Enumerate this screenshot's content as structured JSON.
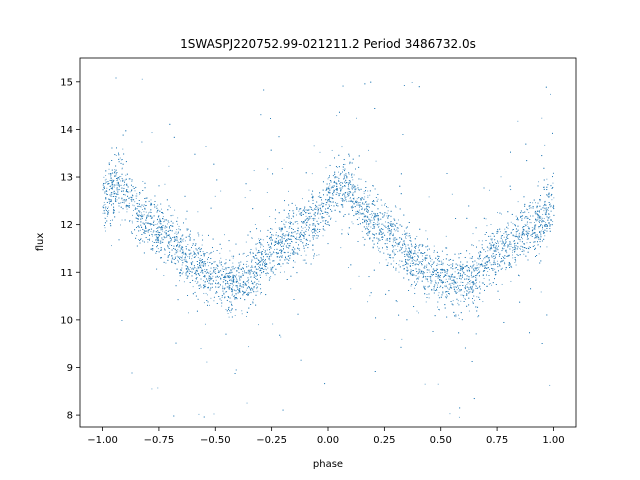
{
  "chart_data": {
    "type": "scatter",
    "title": "1SWASPJ220752.99-021211.2 Period 3486732.0s",
    "xlabel": "phase",
    "ylabel": "flux",
    "xlim": [
      -1.1,
      1.1
    ],
    "ylim": [
      7.75,
      15.5
    ],
    "grid": false,
    "xticks": [
      -1.0,
      -0.75,
      -0.5,
      -0.25,
      0.0,
      0.25,
      0.5,
      0.75,
      1.0
    ],
    "xtick_labels": [
      "−1.00",
      "−0.75",
      "−0.50",
      "−0.25",
      "0.00",
      "0.25",
      "0.50",
      "0.75",
      "1.00"
    ],
    "yticks": [
      8,
      9,
      10,
      11,
      12,
      13,
      14,
      15
    ],
    "ytick_labels": [
      "8",
      "9",
      "10",
      "11",
      "12",
      "13",
      "14",
      "15"
    ],
    "marker_color": "#1f77b4",
    "series": [
      {
        "profile": {
          "phase": [
            0.0,
            0.04,
            0.08,
            0.1,
            0.12,
            0.15,
            0.2,
            0.3,
            0.4,
            0.5,
            0.6,
            0.65,
            0.7,
            0.75,
            0.85,
            0.95,
            1.0
          ],
          "flux": [
            12.5,
            12.75,
            12.8,
            12.7,
            12.6,
            12.3,
            12.1,
            11.7,
            11.2,
            10.9,
            10.75,
            10.9,
            11.2,
            11.45,
            11.8,
            12.1,
            12.5
          ]
        },
        "scatter_sigma": 0.3,
        "outlier_fraction": 0.06,
        "point_count": 9000
      }
    ]
  }
}
